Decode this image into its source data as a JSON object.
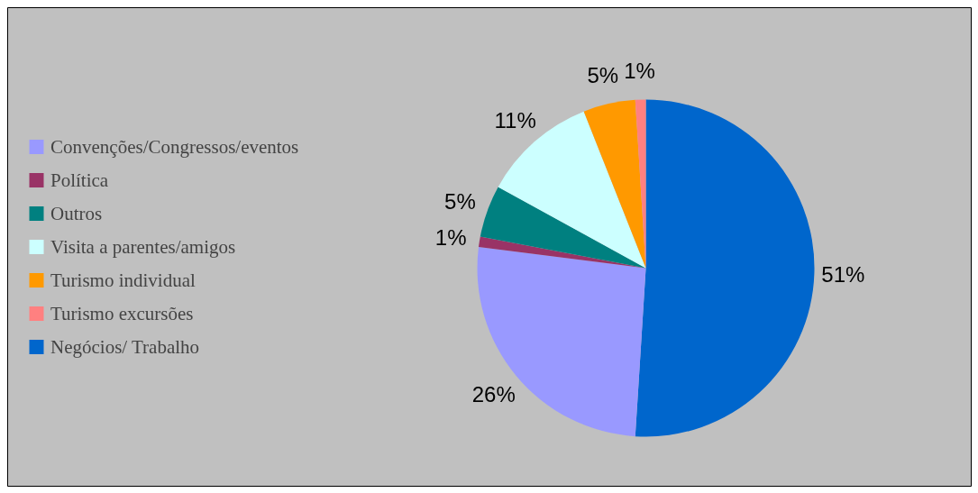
{
  "chart_data": {
    "type": "pie",
    "categories": [
      "Convenções/Congressos/eventos",
      "Política",
      "Outros",
      "Visita a parentes/amigos",
      "Turismo individual",
      "Turismo excursões",
      "Negócios/ Trabalho"
    ],
    "values": [
      26,
      1,
      5,
      11,
      5,
      1,
      51
    ],
    "colors": [
      "#9999ff",
      "#993366",
      "#008080",
      "#ccffff",
      "#ff9900",
      "#ff8080",
      "#0066cc"
    ],
    "value_labels": [
      "26%",
      "1%",
      "5%",
      "11%",
      "5%",
      "1%",
      "51%"
    ],
    "legend": "left"
  }
}
